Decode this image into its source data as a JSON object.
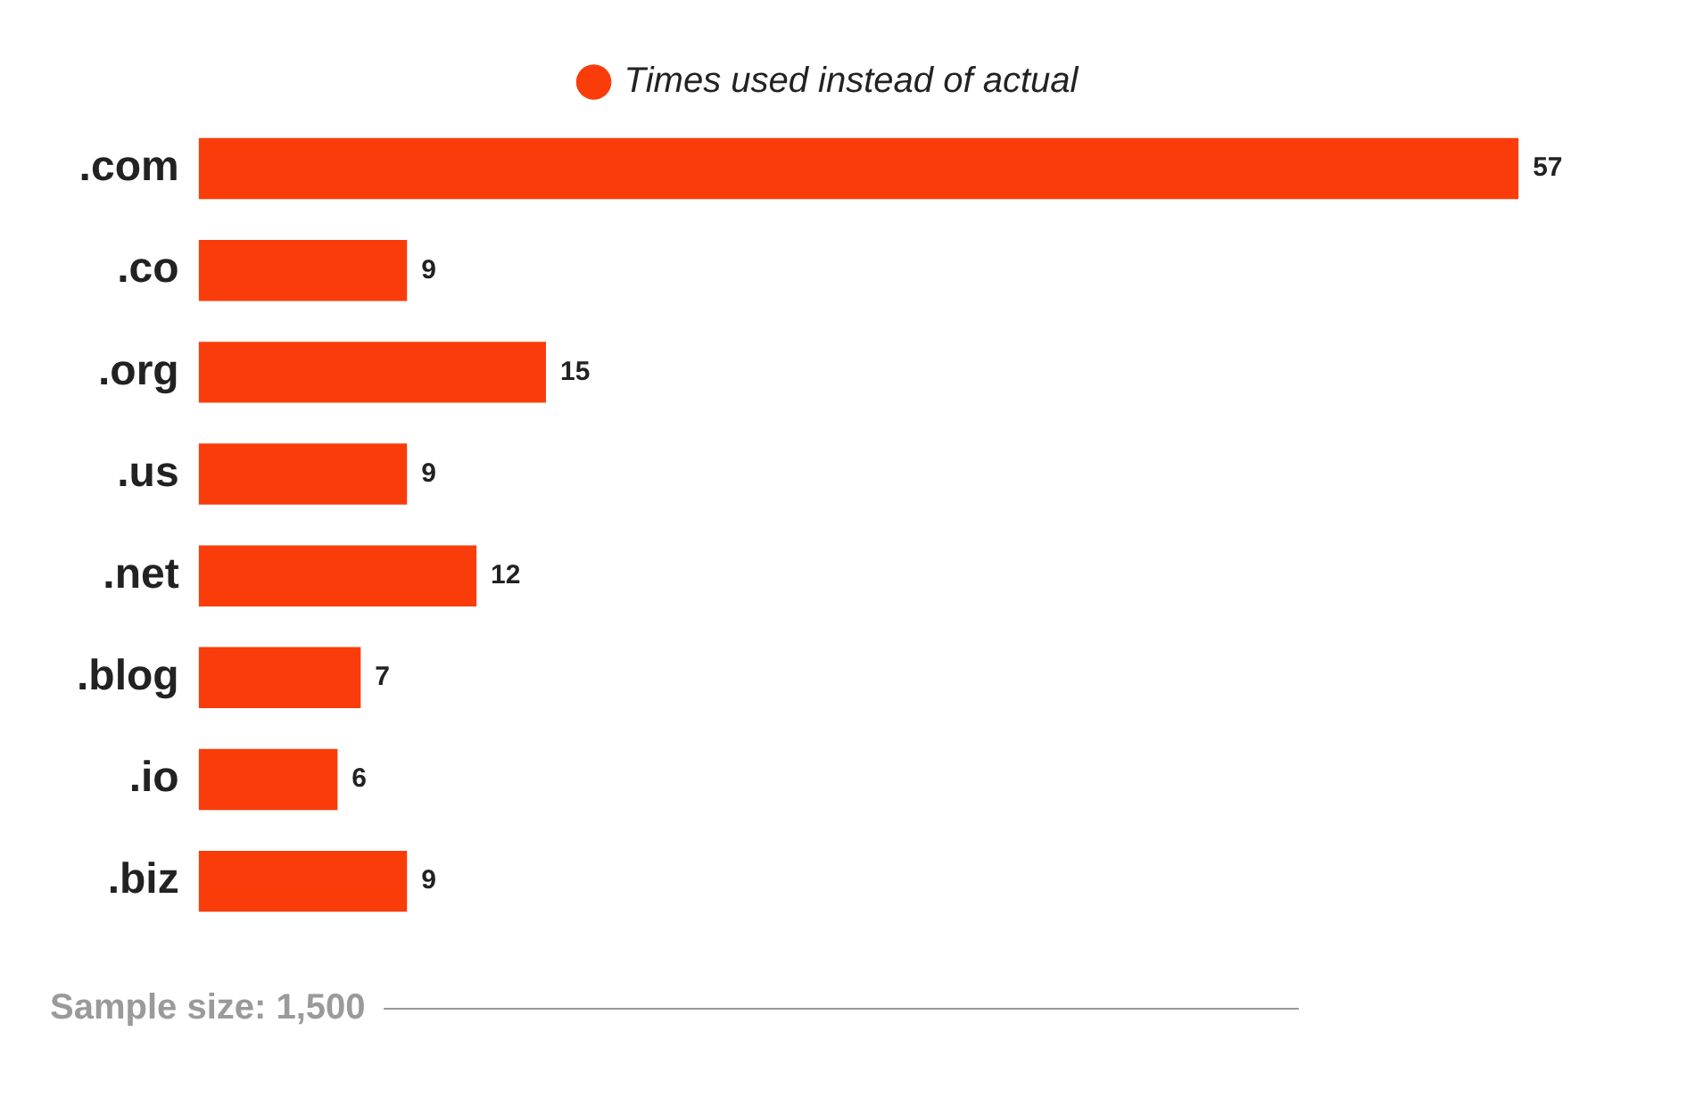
{
  "chart_data": {
    "type": "bar",
    "orientation": "horizontal",
    "categories": [
      ".com",
      ".co",
      ".org",
      ".us",
      ".net",
      ".blog",
      ".io",
      ".biz"
    ],
    "series": [
      {
        "name": "Times used instead of actual",
        "color": "#fa3c0a",
        "values": [
          57,
          9,
          15,
          9,
          12,
          7,
          6,
          9
        ]
      }
    ],
    "data_labels": true,
    "legend": "top",
    "annotations": [
      "Sample size: 1,500"
    ]
  }
}
